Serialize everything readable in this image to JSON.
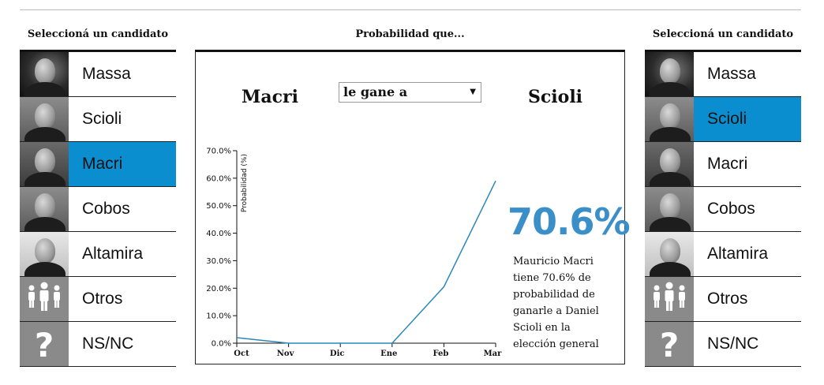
{
  "left_panel": {
    "title": "Seleccioná un candidato",
    "candidates": [
      {
        "label": "Massa",
        "selected": false
      },
      {
        "label": "Scioli",
        "selected": false
      },
      {
        "label": "Macri",
        "selected": true
      },
      {
        "label": "Cobos",
        "selected": false
      },
      {
        "label": "Altamira",
        "selected": false
      },
      {
        "label": "Otros",
        "selected": false
      },
      {
        "label": "NS/NC",
        "selected": false
      }
    ]
  },
  "right_panel": {
    "title": "Seleccioná un candidato",
    "candidates": [
      {
        "label": "Massa",
        "selected": false
      },
      {
        "label": "Scioli",
        "selected": true
      },
      {
        "label": "Macri",
        "selected": false
      },
      {
        "label": "Cobos",
        "selected": false
      },
      {
        "label": "Altamira",
        "selected": false
      },
      {
        "label": "Otros",
        "selected": false
      },
      {
        "label": "NS/NC",
        "selected": false
      }
    ]
  },
  "center": {
    "title": "Probabilidad que...",
    "candidate_a": "Macri",
    "candidate_b": "Scioli",
    "relation_select": {
      "value": "le gane a",
      "arrow": "▼"
    },
    "headline_pct": "70.6%",
    "description": "Mauricio Macri tiene 70.6% de probabilidad de ganarle a Daniel Scioli en la elección general"
  },
  "colors": {
    "accent": "#0a8ed0",
    "line": "#2a88b8",
    "headline": "#3b8fc8"
  },
  "chart_data": {
    "type": "line",
    "x": [
      "Oct",
      "Nov",
      "Dic",
      "Ene",
      "Feb",
      "Mar"
    ],
    "series": [
      {
        "values": [
          2.0,
          0.0,
          0.0,
          0.0,
          20.5,
          59.0
        ]
      }
    ],
    "ylabel": "Probabilidad (%)",
    "ylim": [
      0,
      70
    ],
    "yticks": [
      "0.0%",
      "10.0%",
      "20.0%",
      "30.0%",
      "40.0%",
      "50.0%",
      "60.0%",
      "70.0%"
    ],
    "grid": false
  }
}
